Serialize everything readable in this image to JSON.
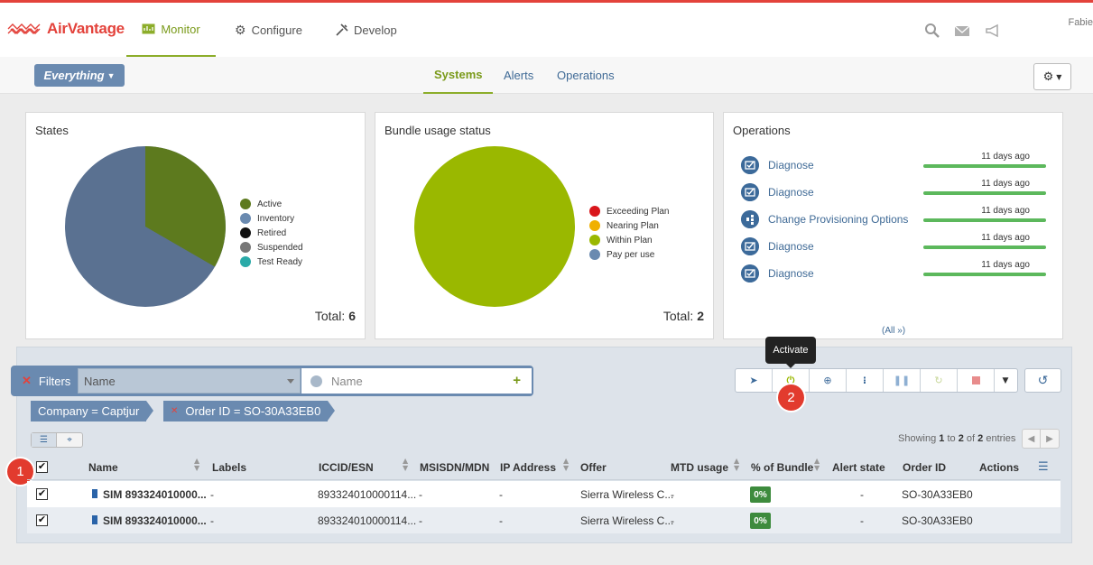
{
  "header": {
    "logo_text": "AirVantage",
    "tabs": [
      {
        "label": "Monitor",
        "icon": "monitor-icon"
      },
      {
        "label": "Configure",
        "icon": "gear-icon"
      },
      {
        "label": "Develop",
        "icon": "tools-icon"
      }
    ],
    "user": "Fabie"
  },
  "subnav": {
    "scope_label": "Everything",
    "tabs": [
      "Systems",
      "Alerts",
      "Operations"
    ]
  },
  "states": {
    "title": "States",
    "legend": [
      {
        "label": "Active",
        "color": "#5d7a1e"
      },
      {
        "label": "Inventory",
        "color": "#6a8ab0"
      },
      {
        "label": "Retired",
        "color": "#111111"
      },
      {
        "label": "Suspended",
        "color": "#777777"
      },
      {
        "label": "Test Ready",
        "color": "#2aaaa8"
      }
    ],
    "total_label": "Total:",
    "total_value": "6"
  },
  "bundle": {
    "title": "Bundle usage status",
    "legend": [
      {
        "label": "Exceeding Plan",
        "color": "#d9161b"
      },
      {
        "label": "Nearing Plan",
        "color": "#f0b000"
      },
      {
        "label": "Within Plan",
        "color": "#9ab800"
      },
      {
        "label": "Pay per use",
        "color": "#6a8ab0"
      }
    ],
    "total_label": "Total:",
    "total_value": "2"
  },
  "operations": {
    "title": "Operations",
    "items": [
      {
        "name": "Diagnose",
        "time": "11 days ago"
      },
      {
        "name": "Diagnose",
        "time": "11 days ago"
      },
      {
        "name": "Change Provisioning Options",
        "time": "11 days ago"
      },
      {
        "name": "Diagnose",
        "time": "11 days ago"
      },
      {
        "name": "Diagnose",
        "time": "11 days ago"
      }
    ],
    "all_link": "(All »)"
  },
  "tooltip": "Activate",
  "filters": {
    "label": "Filters",
    "field": "Name",
    "placeholder": "Name",
    "chips": [
      "Company = Captjur",
      "Order ID = SO-30A33EB0"
    ]
  },
  "badges": [
    "1",
    "2"
  ],
  "table": {
    "showing_prefix": "Showing",
    "showing_from": "1",
    "showing_to_word": "to",
    "showing_to": "2",
    "showing_of_word": "of",
    "showing_total": "2",
    "showing_suffix": "entries",
    "columns": [
      "Name",
      "Labels",
      "ICCID/ESN",
      "MSISDN/MDN",
      "IP Address",
      "Offer",
      "MTD usage",
      "% of Bundle",
      "Alert state",
      "Order ID",
      "Actions"
    ],
    "rows": [
      {
        "name": "SIM 893324010000...",
        "labels": "-",
        "iccid": "893324010000114...",
        "msisdn": "-",
        "ip": "-",
        "offer": "Sierra Wireless C...",
        "mtd": "-",
        "pct": "0%",
        "alert": "-",
        "order": "SO-30A33EB0"
      },
      {
        "name": "SIM 893324010000...",
        "labels": "-",
        "iccid": "893324010000114...",
        "msisdn": "-",
        "ip": "-",
        "offer": "Sierra Wireless C...",
        "mtd": "-",
        "pct": "0%",
        "alert": "-",
        "order": "SO-30A33EB0"
      }
    ]
  },
  "colors": {
    "brand": "#e3423b",
    "accent_green": "#8cad2a",
    "steel_blue": "#6a8ab0"
  }
}
